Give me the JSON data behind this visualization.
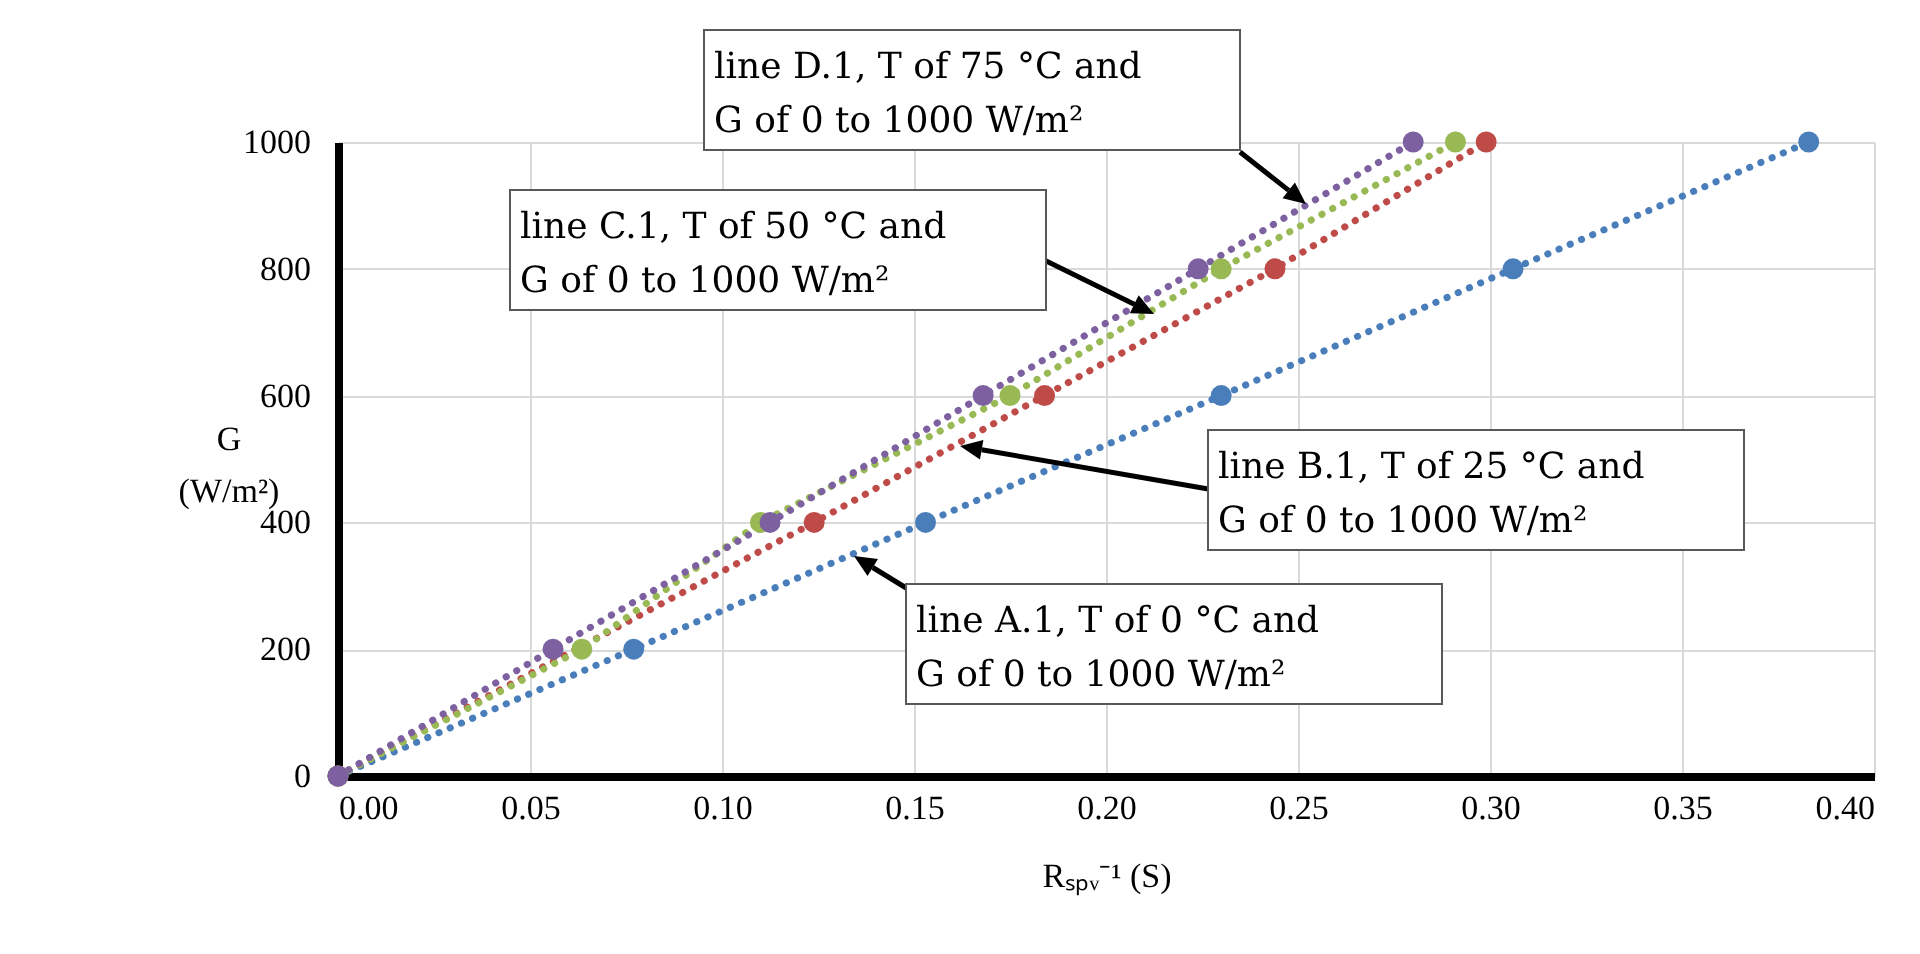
{
  "chart_data": {
    "type": "line",
    "xlabel": "Rₛₚᵥ⁻¹ (S)",
    "ylabel": "G (W/m²)",
    "xlim": [
      0,
      0.4
    ],
    "ylim": [
      0,
      1000
    ],
    "xticks": [
      {
        "value": 0,
        "label": "0.00"
      },
      {
        "value": 0.05,
        "label": "0.05"
      },
      {
        "value": 0.1,
        "label": "0.10"
      },
      {
        "value": 0.15,
        "label": "0.15"
      },
      {
        "value": 0.2,
        "label": "0.20"
      },
      {
        "value": 0.25,
        "label": "0.25"
      },
      {
        "value": 0.3,
        "label": "0.30"
      },
      {
        "value": 0.35,
        "label": "0.35"
      },
      {
        "value": 0.4,
        "label": "0.40"
      }
    ],
    "yticks": [
      0,
      200,
      400,
      600,
      800,
      1000
    ],
    "grid": true,
    "legend": false,
    "marker": "circle",
    "line_style": "dotted",
    "series": [
      {
        "color": "#4a7ebb",
        "x": [
          0,
          0.077,
          0.153,
          0.23,
          0.306,
          0.383
        ],
        "values": [
          0,
          200,
          400,
          600,
          800,
          1000
        ]
      },
      {
        "color": "#be4b48",
        "x": [
          0,
          null,
          0.124,
          0.184,
          0.244,
          0.299
        ],
        "values": [
          0,
          null,
          400,
          600,
          800,
          1000
        ]
      },
      {
        "color": "#98b954",
        "x": [
          0,
          0.0635,
          0.11,
          0.175,
          0.23,
          0.291
        ],
        "values": [
          0,
          200,
          400,
          600,
          800,
          1000
        ]
      },
      {
        "color": "#7d60a0",
        "x": [
          0,
          0.056,
          0.1125,
          0.168,
          0.224,
          0.28
        ],
        "values": [
          0,
          200,
          400,
          600,
          800,
          1000
        ]
      }
    ],
    "annotations": [
      "line D.1, T of 75 °C and\nG of 0 to 1000 W/m²",
      "line C.1, T of 50 °C and\nG of 0 to 1000 W/m²",
      "line B.1, T of 25 °C and\nG of 0 to 1000 W/m²",
      "line A.1, T of 0 °C and\nG of 0 to 1000 W/m²"
    ]
  }
}
